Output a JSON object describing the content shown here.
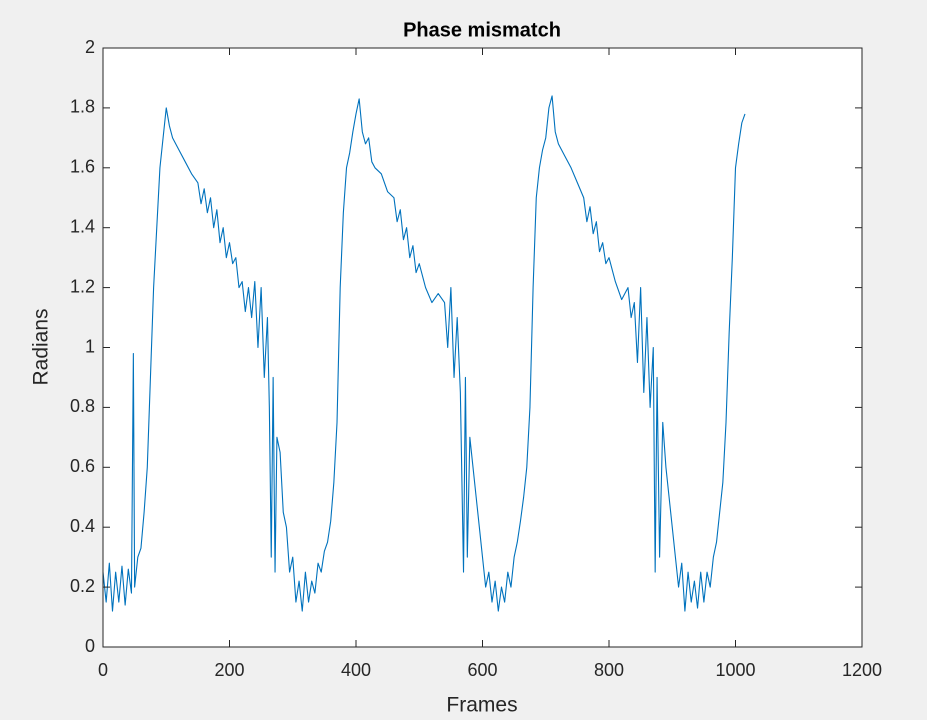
{
  "chart_data": {
    "type": "line",
    "title": "Phase mismatch",
    "x_label": "Frames",
    "y_label": "Radians",
    "color": "#0072bd",
    "xlim": [
      0,
      1200
    ],
    "xticks": [
      0,
      200,
      400,
      600,
      800,
      1000,
      1200
    ],
    "ylim": [
      0,
      2
    ],
    "yticks": [
      0,
      0.2,
      0.4,
      0.6,
      0.8,
      1,
      1.2,
      1.4,
      1.6,
      1.8,
      2
    ],
    "grid": false,
    "x": [
      0,
      5,
      10,
      15,
      20,
      25,
      30,
      35,
      40,
      45,
      48,
      50,
      55,
      60,
      65,
      70,
      75,
      80,
      85,
      90,
      95,
      100,
      105,
      110,
      120,
      130,
      140,
      150,
      155,
      160,
      165,
      170,
      175,
      180,
      185,
      190,
      195,
      200,
      205,
      210,
      215,
      220,
      225,
      230,
      235,
      240,
      245,
      250,
      255,
      260,
      263,
      266,
      269,
      272,
      275,
      280,
      285,
      290,
      295,
      300,
      305,
      310,
      315,
      320,
      325,
      330,
      335,
      340,
      345,
      350,
      355,
      360,
      365,
      370,
      375,
      380,
      385,
      390,
      395,
      400,
      405,
      410,
      415,
      420,
      425,
      430,
      440,
      450,
      460,
      465,
      470,
      475,
      480,
      485,
      490,
      495,
      500,
      510,
      520,
      530,
      540,
      545,
      550,
      555,
      560,
      565,
      570,
      573,
      576,
      580,
      585,
      590,
      595,
      600,
      605,
      610,
      615,
      620,
      625,
      630,
      635,
      640,
      645,
      650,
      655,
      660,
      665,
      670,
      675,
      680,
      685,
      690,
      695,
      700,
      705,
      710,
      715,
      720,
      730,
      740,
      750,
      760,
      765,
      770,
      775,
      780,
      785,
      790,
      795,
      800,
      810,
      820,
      830,
      835,
      840,
      845,
      850,
      855,
      860,
      865,
      870,
      873,
      876,
      880,
      885,
      890,
      895,
      900,
      905,
      910,
      915,
      920,
      925,
      930,
      935,
      940,
      945,
      950,
      955,
      960,
      965,
      970,
      975,
      980,
      985,
      990,
      995,
      1000,
      1005,
      1010,
      1015
    ],
    "values": [
      0.25,
      0.15,
      0.28,
      0.12,
      0.25,
      0.15,
      0.27,
      0.14,
      0.26,
      0.18,
      0.98,
      0.2,
      0.3,
      0.33,
      0.45,
      0.6,
      0.9,
      1.2,
      1.4,
      1.6,
      1.7,
      1.8,
      1.74,
      1.7,
      1.66,
      1.62,
      1.58,
      1.55,
      1.48,
      1.53,
      1.45,
      1.5,
      1.4,
      1.46,
      1.35,
      1.4,
      1.3,
      1.35,
      1.28,
      1.3,
      1.2,
      1.22,
      1.12,
      1.2,
      1.1,
      1.22,
      1.0,
      1.2,
      0.9,
      1.1,
      0.8,
      0.3,
      0.9,
      0.25,
      0.7,
      0.65,
      0.45,
      0.4,
      0.25,
      0.3,
      0.15,
      0.22,
      0.12,
      0.25,
      0.15,
      0.22,
      0.18,
      0.28,
      0.25,
      0.32,
      0.35,
      0.42,
      0.55,
      0.75,
      1.2,
      1.45,
      1.6,
      1.65,
      1.72,
      1.78,
      1.83,
      1.72,
      1.68,
      1.7,
      1.62,
      1.6,
      1.58,
      1.52,
      1.5,
      1.42,
      1.46,
      1.36,
      1.4,
      1.3,
      1.34,
      1.25,
      1.28,
      1.2,
      1.15,
      1.18,
      1.15,
      1.0,
      1.2,
      0.9,
      1.1,
      0.85,
      0.25,
      0.9,
      0.3,
      0.7,
      0.6,
      0.5,
      0.4,
      0.3,
      0.2,
      0.25,
      0.15,
      0.22,
      0.12,
      0.2,
      0.15,
      0.25,
      0.2,
      0.3,
      0.35,
      0.42,
      0.5,
      0.6,
      0.8,
      1.2,
      1.5,
      1.6,
      1.66,
      1.7,
      1.8,
      1.84,
      1.72,
      1.68,
      1.64,
      1.6,
      1.55,
      1.5,
      1.42,
      1.47,
      1.38,
      1.42,
      1.32,
      1.35,
      1.28,
      1.3,
      1.22,
      1.16,
      1.2,
      1.1,
      1.15,
      0.95,
      1.2,
      0.85,
      1.1,
      0.8,
      1.0,
      0.25,
      0.9,
      0.3,
      0.75,
      0.6,
      0.5,
      0.4,
      0.3,
      0.2,
      0.28,
      0.12,
      0.25,
      0.15,
      0.22,
      0.13,
      0.25,
      0.15,
      0.25,
      0.2,
      0.3,
      0.35,
      0.45,
      0.55,
      0.75,
      1.05,
      1.3,
      1.6,
      1.68,
      1.75,
      1.78
    ]
  }
}
